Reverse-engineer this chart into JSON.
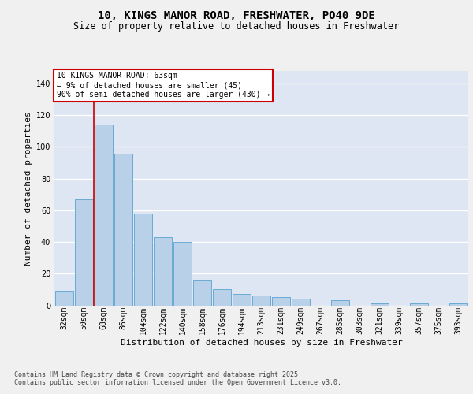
{
  "title1": "10, KINGS MANOR ROAD, FRESHWATER, PO40 9DE",
  "title2": "Size of property relative to detached houses in Freshwater",
  "xlabel": "Distribution of detached houses by size in Freshwater",
  "ylabel": "Number of detached properties",
  "categories": [
    "32sqm",
    "50sqm",
    "68sqm",
    "86sqm",
    "104sqm",
    "122sqm",
    "140sqm",
    "158sqm",
    "176sqm",
    "194sqm",
    "213sqm",
    "231sqm",
    "249sqm",
    "267sqm",
    "285sqm",
    "303sqm",
    "321sqm",
    "339sqm",
    "357sqm",
    "375sqm",
    "393sqm"
  ],
  "values": [
    9,
    67,
    114,
    96,
    58,
    43,
    40,
    16,
    10,
    7,
    6,
    5,
    4,
    0,
    3,
    0,
    1,
    0,
    1,
    0,
    1
  ],
  "bar_color": "#b8d0e8",
  "bar_edge_color": "#6aaad4",
  "bg_color": "#dde6f2",
  "grid_color": "#ffffff",
  "annotation_text": "10 KINGS MANOR ROAD: 63sqm\n← 9% of detached houses are smaller (45)\n90% of semi-detached houses are larger (430) →",
  "annotation_box_edgecolor": "#cc0000",
  "vline_color": "#cc0000",
  "vline_x": 1.5,
  "ylim": [
    0,
    148
  ],
  "yticks": [
    0,
    20,
    40,
    60,
    80,
    100,
    120,
    140
  ],
  "footer1": "Contains HM Land Registry data © Crown copyright and database right 2025.",
  "footer2": "Contains public sector information licensed under the Open Government Licence v3.0.",
  "fig_bg": "#f0f0f0",
  "title1_fontsize": 10,
  "title2_fontsize": 8.5,
  "ylabel_fontsize": 8,
  "xlabel_fontsize": 8,
  "tick_fontsize": 7,
  "annot_fontsize": 7,
  "footer_fontsize": 6
}
